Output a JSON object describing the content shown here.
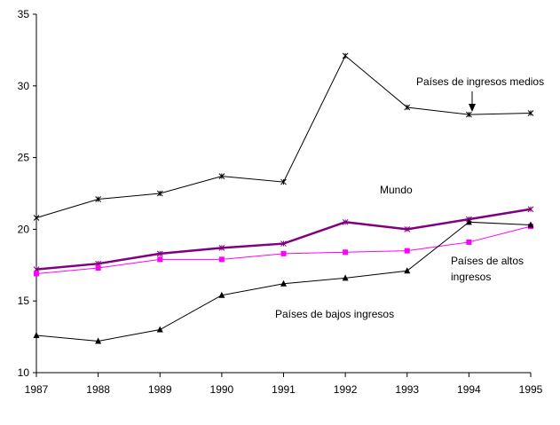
{
  "chart_data": {
    "type": "line",
    "title": "",
    "xlabel": "",
    "ylabel": "",
    "x": [
      1987,
      1988,
      1989,
      1990,
      1991,
      1992,
      1993,
      1994,
      1995
    ],
    "x_tick_labels": [
      "1987",
      "1988",
      "1989",
      "1990",
      "1991",
      "1992",
      "1993",
      "1994",
      "1995"
    ],
    "ylim": [
      10,
      35
    ],
    "y_ticks": [
      10,
      15,
      20,
      25,
      30,
      35
    ],
    "y_tick_labels": [
      "10",
      "15",
      "20",
      "25",
      "30",
      "35"
    ],
    "grid": false,
    "legend": "none",
    "series": [
      {
        "name": "Países de ingresos medios",
        "values": [
          20.8,
          22.1,
          22.5,
          23.7,
          23.3,
          32.1,
          28.5,
          28.0,
          28.1
        ],
        "color": "#000000",
        "marker": "x-star"
      },
      {
        "name": "Mundo",
        "values": [
          17.2,
          17.6,
          18.3,
          18.7,
          19.0,
          20.5,
          20.0,
          20.7,
          21.4
        ],
        "color": "#800080",
        "marker": "x-star"
      },
      {
        "name": "Países de altos ingresos",
        "values": [
          16.9,
          17.3,
          17.9,
          17.9,
          18.3,
          18.4,
          18.5,
          19.1,
          20.2
        ],
        "color": "#ff00ff",
        "marker": "square"
      },
      {
        "name": "Países de bajos ingresos",
        "values": [
          12.6,
          12.2,
          13.0,
          15.4,
          16.2,
          16.6,
          17.1,
          20.5,
          20.3
        ],
        "color": "#000000",
        "marker": "triangle"
      }
    ],
    "annotations": [
      {
        "text": "Países de ingresos medios",
        "arrow": true
      },
      {
        "text": "Mundo"
      },
      {
        "text": "Países de altos"
      },
      {
        "text": "ingresos"
      },
      {
        "text": "Países de bajos ingresos"
      }
    ]
  }
}
